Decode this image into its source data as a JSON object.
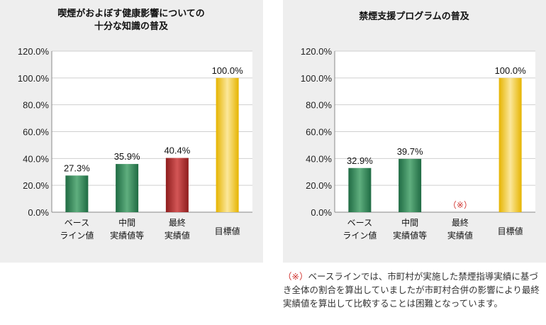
{
  "chart_data": [
    {
      "type": "bar",
      "title_lines": [
        "喫煙がおよぼす健康影響についての",
        "十分な知識の普及"
      ],
      "ylim": [
        0,
        120
      ],
      "y_ticks": [
        "120.0%",
        "100.0%",
        "80.0%",
        "60.0%",
        "40.0%",
        "20.0%",
        "0.0%"
      ],
      "categories": [
        {
          "lines": [
            "ベース",
            "ライン値"
          ]
        },
        {
          "lines": [
            "中間",
            "実績値等"
          ]
        },
        {
          "lines": [
            "最終",
            "実績値"
          ]
        },
        {
          "lines": [
            "目標値"
          ]
        }
      ],
      "values": [
        27.3,
        35.9,
        40.4,
        100.0
      ],
      "value_labels": [
        "27.3%",
        "35.9%",
        "40.4%",
        "100.0%"
      ],
      "bar_colors": [
        "green",
        "green",
        "red",
        "gold"
      ],
      "grid": true
    },
    {
      "type": "bar",
      "title_lines": [
        "禁煙支援プログラムの普及"
      ],
      "ylim": [
        0,
        120
      ],
      "y_ticks": [
        "120.0%",
        "100.0%",
        "80.0%",
        "60.0%",
        "40.0%",
        "20.0%",
        "0.0%"
      ],
      "categories": [
        {
          "lines": [
            "ベース",
            "ライン値"
          ]
        },
        {
          "lines": [
            "中間",
            "実績値等"
          ]
        },
        {
          "lines": [
            "最終",
            "実績値"
          ]
        },
        {
          "lines": [
            "目標値"
          ]
        }
      ],
      "values": [
        32.9,
        39.7,
        null,
        100.0
      ],
      "value_labels": [
        "32.9%",
        "39.7%",
        "（※）",
        "100.0%"
      ],
      "bar_colors": [
        "green",
        "green",
        "none",
        "gold"
      ],
      "grid": true
    }
  ],
  "colors": {
    "green_dark": "#1f6b43",
    "green_light": "#5fae7e",
    "red_dark": "#8e1d1d",
    "red_light": "#d35656",
    "gold_dark": "#e6b400",
    "gold_light": "#fbe79a",
    "note_mark": "#d0312d"
  },
  "note": {
    "mark": "（※）",
    "text": "ベースラインでは、市町村が実施した禁煙指導実績に基づき全体の割合を算出していましたが市町村合併の影響により最終実績値を算出して比較することは困難となっています。"
  }
}
